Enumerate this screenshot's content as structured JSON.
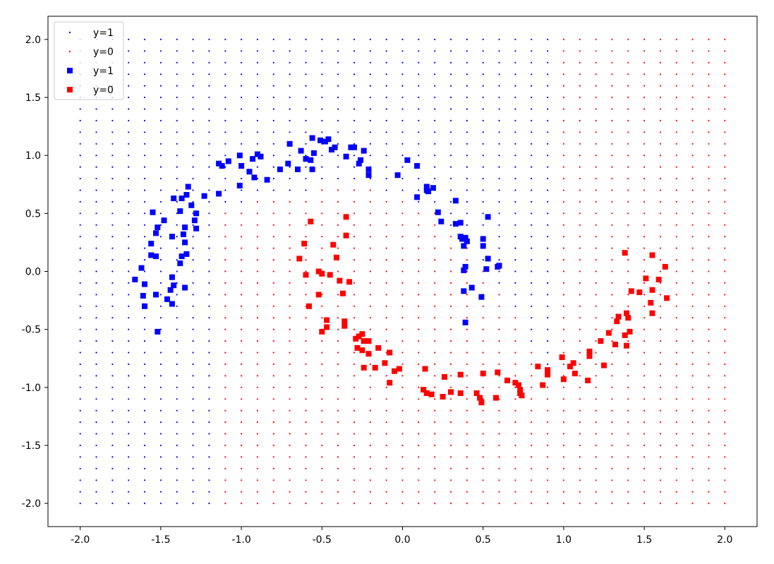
{
  "chart_data": {
    "type": "scatter",
    "title": "",
    "xlabel": "",
    "ylabel": "",
    "xlim": [
      -2.2,
      2.2
    ],
    "ylim": [
      -2.2,
      2.2
    ],
    "xticks": [
      "-2.0",
      "-1.5",
      "-1.0",
      "-0.5",
      "0.0",
      "0.5",
      "1.0",
      "1.5",
      "2.0"
    ],
    "yticks": [
      "2.0",
      "1.5",
      "1.0",
      "0.5",
      "0.0",
      "-0.5",
      "-1.0",
      "-1.5",
      "-2.0"
    ],
    "grid": false,
    "legend_position": "top-left",
    "legend": [
      {
        "label": "y=1",
        "marker": "dot",
        "color": "#0000ff"
      },
      {
        "label": "y=0",
        "marker": "dot",
        "color": "#ff0000"
      },
      {
        "label": "y=1",
        "marker": "square",
        "color": "#0000ff"
      },
      {
        "label": "y=0",
        "marker": "square",
        "color": "#ff0000"
      }
    ],
    "decision_grid": {
      "x_start": -2.0,
      "x_end": 2.0,
      "step": 0.1,
      "columns_class_1": [
        -2.0,
        -1.9,
        -1.8,
        -1.7,
        -1.6,
        -1.5,
        -1.4,
        -1.3,
        -1.2
      ],
      "boundary_note_columns": [
        -1.1,
        -1.0,
        -0.9,
        -0.8,
        -0.7,
        -0.6,
        -0.5,
        -0.4,
        -0.3,
        -0.2,
        -0.1,
        0.0,
        0.1,
        0.2,
        0.3,
        0.4,
        0.5,
        0.6,
        0.7,
        0.8,
        0.9,
        1.0,
        1.1,
        1.2,
        1.3,
        1.4,
        1.5
      ],
      "columns_class_0": [
        1.6,
        1.7,
        1.8,
        1.9,
        2.0
      ]
    },
    "series": [
      {
        "name": "y=1",
        "color": "#0000ff",
        "points": [
          [
            -1.55,
            0.51
          ],
          [
            -1.52,
            0.38
          ],
          [
            -1.48,
            0.44
          ],
          [
            -1.53,
            0.33
          ],
          [
            -1.56,
            0.24
          ],
          [
            -1.56,
            0.14
          ],
          [
            -1.53,
            0.13
          ],
          [
            -1.62,
            0.03
          ],
          [
            -1.66,
            -0.07
          ],
          [
            -1.6,
            -0.11
          ],
          [
            -1.61,
            -0.21
          ],
          [
            -1.6,
            -0.3
          ],
          [
            -1.53,
            -0.2
          ],
          [
            -1.52,
            -0.52
          ],
          [
            -1.46,
            -0.24
          ],
          [
            -1.43,
            -0.28
          ],
          [
            -1.44,
            -0.16
          ],
          [
            -1.42,
            -0.12
          ],
          [
            -1.43,
            -0.05
          ],
          [
            -1.38,
            0.07
          ],
          [
            -1.37,
            0.13
          ],
          [
            -1.34,
            0.15
          ],
          [
            -1.35,
            -0.14
          ],
          [
            -1.43,
            0.3
          ],
          [
            -1.35,
            0.25
          ],
          [
            -1.36,
            0.32
          ],
          [
            -1.35,
            0.38
          ],
          [
            -1.38,
            0.52
          ],
          [
            -1.42,
            0.63
          ],
          [
            -1.37,
            0.63
          ],
          [
            -1.34,
            0.66
          ],
          [
            -1.33,
            0.73
          ],
          [
            -1.31,
            0.57
          ],
          [
            -1.28,
            0.5
          ],
          [
            -1.29,
            0.44
          ],
          [
            -1.28,
            0.37
          ],
          [
            -1.23,
            0.65
          ],
          [
            -1.14,
            0.67
          ],
          [
            -1.14,
            0.93
          ],
          [
            -1.12,
            0.91
          ],
          [
            -1.08,
            0.95
          ],
          [
            -1.01,
            0.74
          ],
          [
            -1.01,
            1.0
          ],
          [
            -1.0,
            0.91
          ],
          [
            -0.95,
            0.86
          ],
          [
            -0.93,
            0.97
          ],
          [
            -0.9,
            1.01
          ],
          [
            -0.92,
            0.81
          ],
          [
            -0.88,
            0.99
          ],
          [
            -0.84,
            0.79
          ],
          [
            -0.76,
            0.88
          ],
          [
            -0.7,
            1.1
          ],
          [
            -0.71,
            0.93
          ],
          [
            -0.65,
            0.88
          ],
          [
            -0.63,
            1.04
          ],
          [
            -0.6,
            0.97
          ],
          [
            -0.57,
            0.96
          ],
          [
            -0.56,
            1.15
          ],
          [
            -0.55,
            1.02
          ],
          [
            -0.56,
            0.88
          ],
          [
            -0.51,
            1.13
          ],
          [
            -0.48,
            1.12
          ],
          [
            -0.46,
            1.14
          ],
          [
            -0.44,
            1.05
          ],
          [
            -0.42,
            1.07
          ],
          [
            -0.35,
            0.99
          ],
          [
            -0.32,
            1.07
          ],
          [
            -0.3,
            1.07
          ],
          [
            -0.26,
            0.96
          ],
          [
            -0.27,
            0.93
          ],
          [
            -0.24,
            1.04
          ],
          [
            -0.21,
            0.88
          ],
          [
            -0.21,
            0.83
          ],
          [
            -0.03,
            0.83
          ],
          [
            0.03,
            0.96
          ],
          [
            0.09,
            0.91
          ],
          [
            0.09,
            0.64
          ],
          [
            0.15,
            0.73
          ],
          [
            0.15,
            0.7
          ],
          [
            0.19,
            0.72
          ],
          [
            0.16,
            0.69
          ],
          [
            0.22,
            0.51
          ],
          [
            0.24,
            0.43
          ],
          [
            0.33,
            0.61
          ],
          [
            0.33,
            0.41
          ],
          [
            0.36,
            0.42
          ],
          [
            0.36,
            0.3
          ],
          [
            0.37,
            0.28
          ],
          [
            0.38,
            0.22
          ],
          [
            0.39,
            0.29
          ],
          [
            0.4,
            0.26
          ],
          [
            0.38,
            0.01
          ],
          [
            0.39,
            0.04
          ],
          [
            0.38,
            -0.17
          ],
          [
            0.39,
            -0.44
          ],
          [
            0.43,
            -0.14
          ],
          [
            0.49,
            -0.22
          ],
          [
            0.5,
            0.28
          ],
          [
            0.5,
            0.22
          ],
          [
            0.52,
            0.02
          ],
          [
            0.53,
            0.11
          ],
          [
            0.53,
            0.47
          ],
          [
            0.59,
            0.04
          ],
          [
            0.6,
            0.05
          ]
        ]
      },
      {
        "name": "y=0",
        "color": "#ff0000",
        "points": [
          [
            -0.57,
            0.43
          ],
          [
            -0.61,
            0.24
          ],
          [
            -0.64,
            0.11
          ],
          [
            -0.6,
            -0.03
          ],
          [
            -0.58,
            -0.3
          ],
          [
            -0.52,
            0.0
          ],
          [
            -0.5,
            -0.02
          ],
          [
            -0.52,
            -0.2
          ],
          [
            -0.5,
            -0.52
          ],
          [
            -0.47,
            -0.48
          ],
          [
            -0.47,
            -0.42
          ],
          [
            -0.45,
            -0.03
          ],
          [
            -0.43,
            0.23
          ],
          [
            -0.41,
            0.12
          ],
          [
            -0.39,
            -0.08
          ],
          [
            -0.37,
            -0.19
          ],
          [
            -0.36,
            -0.43
          ],
          [
            -0.36,
            -0.47
          ],
          [
            -0.35,
            0.31
          ],
          [
            -0.35,
            0.47
          ],
          [
            -0.33,
            -0.09
          ],
          [
            -0.29,
            -0.58
          ],
          [
            -0.28,
            -0.66
          ],
          [
            -0.27,
            -0.56
          ],
          [
            -0.25,
            -0.68
          ],
          [
            -0.25,
            -0.54
          ],
          [
            -0.24,
            -0.6
          ],
          [
            -0.24,
            -0.83
          ],
          [
            -0.21,
            -0.6
          ],
          [
            -0.21,
            -0.71
          ],
          [
            -0.17,
            -0.83
          ],
          [
            -0.15,
            -0.66
          ],
          [
            -0.11,
            -0.79
          ],
          [
            -0.08,
            -0.96
          ],
          [
            -0.08,
            -0.7
          ],
          [
            -0.05,
            -0.86
          ],
          [
            -0.02,
            -0.84
          ],
          [
            0.13,
            -1.02
          ],
          [
            0.14,
            -0.84
          ],
          [
            0.15,
            -1.05
          ],
          [
            0.18,
            -1.06
          ],
          [
            0.25,
            -1.08
          ],
          [
            0.26,
            -0.91
          ],
          [
            0.3,
            -1.04
          ],
          [
            0.36,
            -0.89
          ],
          [
            0.36,
            -1.05
          ],
          [
            0.46,
            -1.05
          ],
          [
            0.48,
            -1.09
          ],
          [
            0.49,
            -1.13
          ],
          [
            0.5,
            -0.88
          ],
          [
            0.59,
            -0.87
          ],
          [
            0.58,
            -1.09
          ],
          [
            0.65,
            -0.94
          ],
          [
            0.7,
            -0.96
          ],
          [
            0.72,
            -0.98
          ],
          [
            0.73,
            -1.02
          ],
          [
            0.73,
            -1.05
          ],
          [
            0.74,
            -1.07
          ],
          [
            0.84,
            -0.82
          ],
          [
            0.87,
            -0.98
          ],
          [
            0.9,
            -0.85
          ],
          [
            0.9,
            -0.89
          ],
          [
            0.99,
            -0.74
          ],
          [
            1.0,
            -0.93
          ],
          [
            1.04,
            -0.82
          ],
          [
            1.06,
            -0.79
          ],
          [
            1.07,
            -0.88
          ],
          [
            1.15,
            -0.94
          ],
          [
            1.16,
            -0.69
          ],
          [
            1.16,
            -0.73
          ],
          [
            1.23,
            -0.6
          ],
          [
            1.25,
            -0.81
          ],
          [
            1.28,
            -0.53
          ],
          [
            1.32,
            -0.63
          ],
          [
            1.33,
            -0.43
          ],
          [
            1.34,
            -0.39
          ],
          [
            1.38,
            -0.55
          ],
          [
            1.39,
            -0.64
          ],
          [
            1.41,
            -0.52
          ],
          [
            1.39,
            -0.36
          ],
          [
            1.4,
            -0.4
          ],
          [
            1.42,
            -0.17
          ],
          [
            1.38,
            0.16
          ],
          [
            1.47,
            -0.18
          ],
          [
            1.51,
            -0.06
          ],
          [
            1.54,
            -0.27
          ],
          [
            1.55,
            -0.16
          ],
          [
            1.55,
            0.14
          ],
          [
            1.55,
            -0.36
          ],
          [
            1.59,
            -0.07
          ],
          [
            1.63,
            0.04
          ],
          [
            1.64,
            -0.23
          ]
        ]
      }
    ]
  }
}
